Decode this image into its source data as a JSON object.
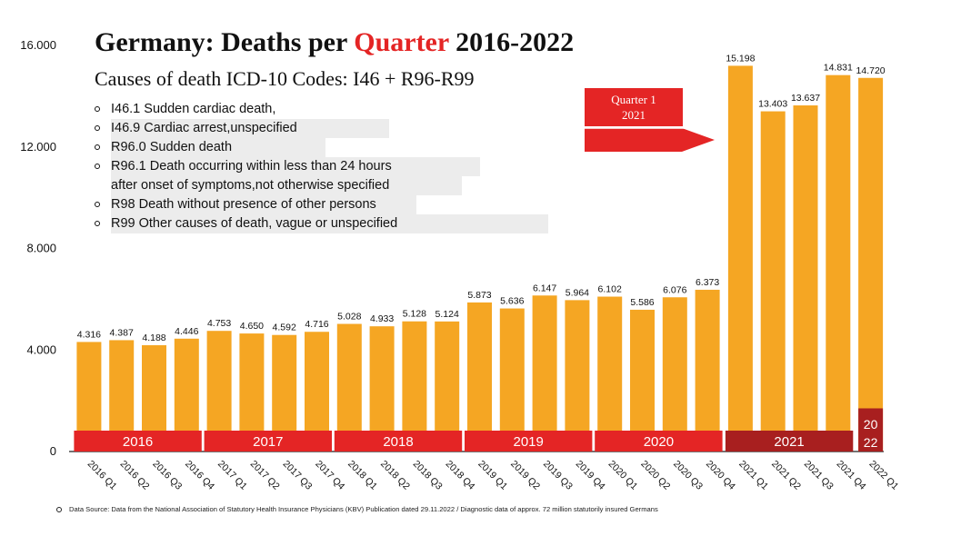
{
  "header": {
    "title_part1": "Germany: Deaths per ",
    "title_highlight": "Quarter",
    "title_part2": " 2016-2022",
    "subtitle": "Causes of death ICD-10 Codes: I46 + R96-R99"
  },
  "codes": [
    "I46.1 Sudden cardiac death,",
    "I46.9 Cardiac arrest,unspecified",
    "R96.0 Sudden death",
    "R96.1 Death occurring within less than 24 hours",
    "after onset of symptoms,not otherwise specified",
    "R98 Death without presence of other persons",
    "R99 Other causes of death, vague or unspecified"
  ],
  "callout": {
    "line1": "Quarter 1",
    "line2": "2021"
  },
  "source": "Data Source: Data from the National Association of Statutory Health Insurance Physicians (KBV) Publication dated 29.11.2022 / Diagnostic data of approx. 72 million statutorily insured Germans",
  "colors": {
    "bar": "#f5a623",
    "year_band": "#e42525",
    "year_band_2021": "#a81f1f",
    "year_band_2022": "#a81f1f",
    "title_accent": "#e42525"
  },
  "chart_data": {
    "type": "bar",
    "title": "Germany: Deaths per Quarter 2016-2022",
    "subtitle": "Causes of death ICD-10 Codes: I46 + R96-R99",
    "categories": [
      "2016 Q1",
      "2016 Q2",
      "2016 Q3",
      "2016 Q4",
      "2017 Q1",
      "2017 Q2",
      "2017 Q3",
      "2017 Q4",
      "2018 Q1",
      "2018 Q2",
      "2018 Q3",
      "2018 Q4",
      "2019 Q1",
      "2019 Q2",
      "2019 Q3",
      "2019 Q4",
      "2020 Q1",
      "2020 Q2",
      "2020 Q3",
      "2020 Q4",
      "2021 Q1",
      "2021 Q2",
      "2021 Q3",
      "2021 Q4",
      "2022 Q1"
    ],
    "values": [
      4316,
      4387,
      4188,
      4446,
      4753,
      4650,
      4592,
      4716,
      5028,
      4933,
      5128,
      5124,
      5873,
      5636,
      6147,
      5964,
      6102,
      5586,
      6076,
      6373,
      15198,
      13403,
      13637,
      14831,
      14720
    ],
    "value_labels": [
      "4.316",
      "4.387",
      "4.188",
      "4.446",
      "4.753",
      "4.650",
      "4.592",
      "4.716",
      "5.028",
      "4.933",
      "5.128",
      "5.124",
      "5.873",
      "5.636",
      "6.147",
      "5.964",
      "6.102",
      "5.586",
      "6.076",
      "6.373",
      "15.198",
      "13.403",
      "13.637",
      "14.831",
      "14.720"
    ],
    "ylim": [
      0,
      16000
    ],
    "yticks": [
      0,
      4000,
      8000,
      12000,
      16000
    ],
    "ytick_labels": [
      "0",
      "4.000",
      "8.000",
      "12.000",
      "16.000"
    ],
    "year_groups": [
      {
        "label": "2016",
        "start": 0,
        "end": 3
      },
      {
        "label": "2017",
        "start": 4,
        "end": 7
      },
      {
        "label": "2018",
        "start": 8,
        "end": 11
      },
      {
        "label": "2019",
        "start": 12,
        "end": 15
      },
      {
        "label": "2020",
        "start": 16,
        "end": 19
      },
      {
        "label": "2021",
        "start": 20,
        "end": 23
      },
      {
        "label": "20\n22",
        "start": 24,
        "end": 24
      }
    ],
    "xlabel": "",
    "ylabel": "",
    "grid": false,
    "legend": "none"
  }
}
